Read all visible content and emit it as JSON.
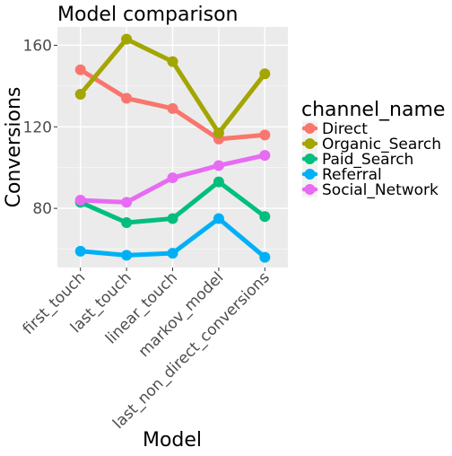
{
  "chart_data": {
    "type": "line",
    "title": "Model comparison",
    "xlabel": "Model",
    "ylabel": "Conversions",
    "categories": [
      "first_touch",
      "last_touch",
      "linear_touch",
      "markov_model",
      "last_non_direct_conversions"
    ],
    "ylim": [
      51,
      169
    ],
    "yticks": [
      80,
      120,
      160
    ],
    "grid": true,
    "legend_title": "channel_name",
    "legend_position": "right",
    "series": [
      {
        "name": "Direct",
        "color": "#F8766D",
        "values": [
          148,
          134,
          129,
          114,
          116
        ]
      },
      {
        "name": "Organic_Search",
        "color": "#A3A500",
        "values": [
          136,
          163,
          152,
          117,
          146
        ]
      },
      {
        "name": "Paid_Search",
        "color": "#00BF7D",
        "values": [
          83,
          73,
          75,
          93,
          76
        ]
      },
      {
        "name": "Referral",
        "color": "#00B0F6",
        "values": [
          59,
          57,
          58,
          75,
          56
        ]
      },
      {
        "name": "Social_Network",
        "color": "#E76BF3",
        "values": [
          84,
          83,
          95,
          101,
          106
        ]
      }
    ]
  }
}
